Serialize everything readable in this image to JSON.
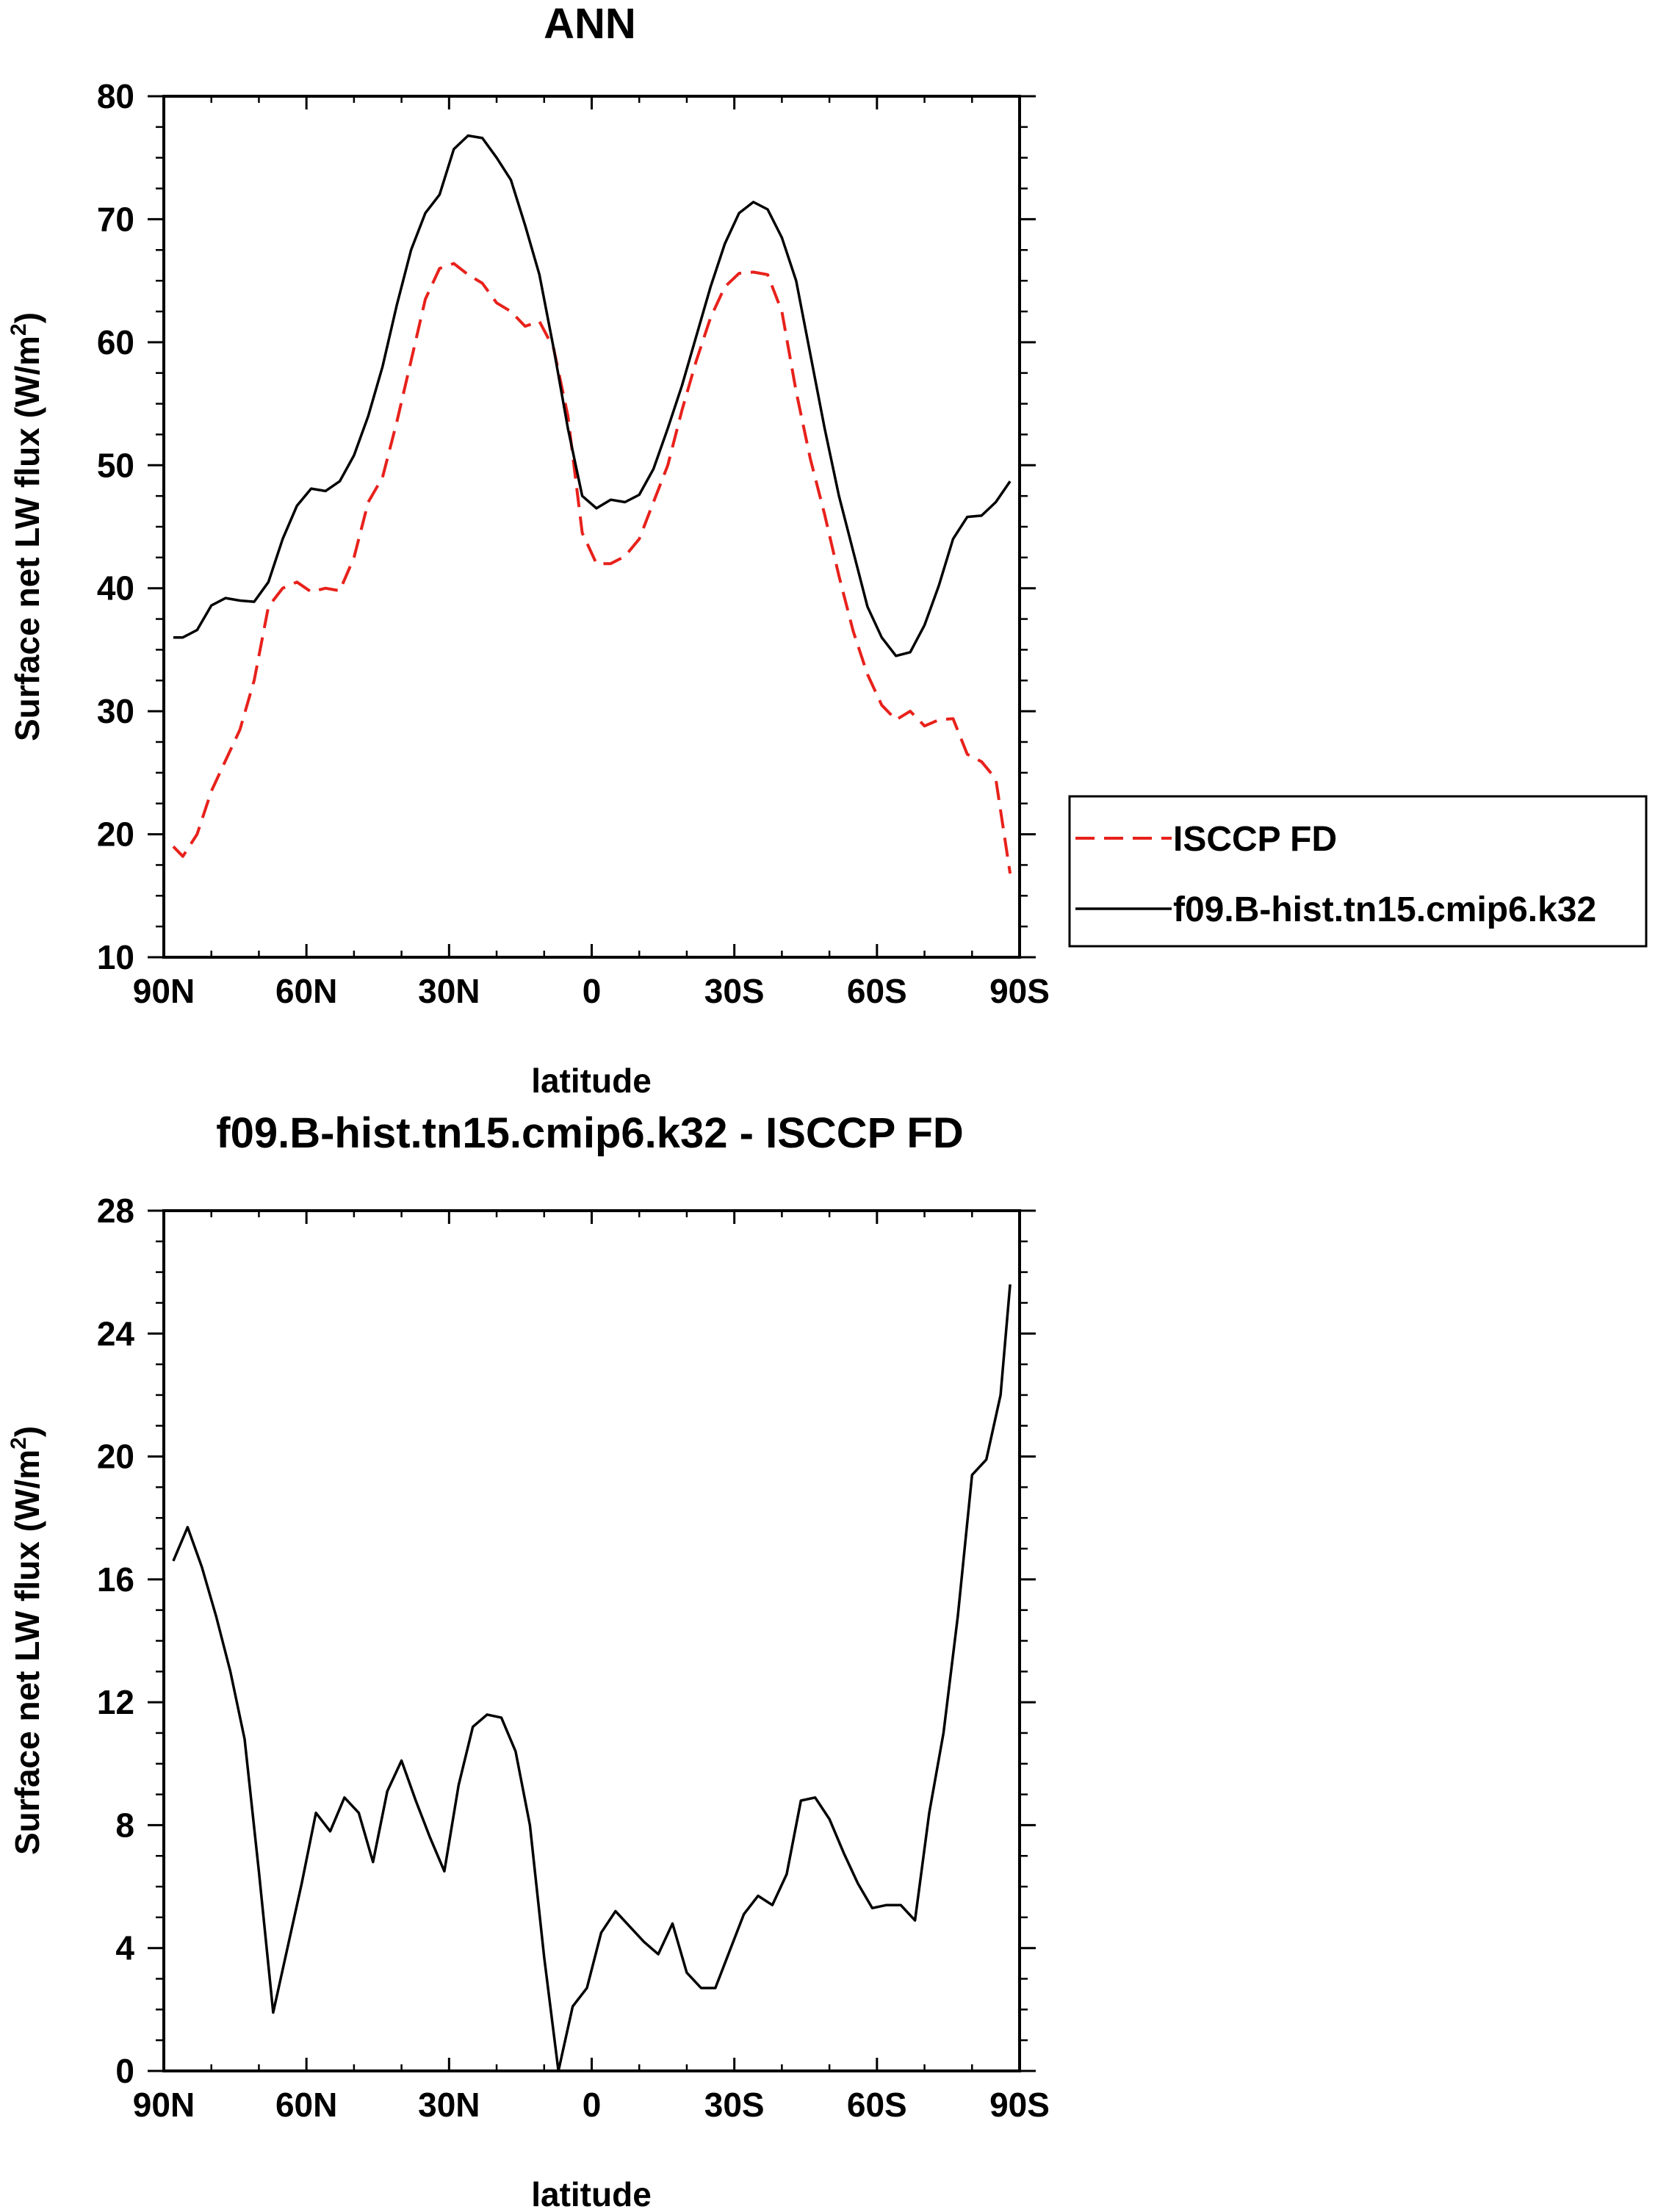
{
  "chart_data": [
    {
      "type": "line",
      "title": "ANN",
      "xlabel": "latitude",
      "ylabel": "Surface net LW flux (W/m",
      "ylabel_sup": "2",
      "ylabel_close": ")",
      "x_tick_values": [
        90,
        60,
        30,
        0,
        -30,
        -60,
        -90
      ],
      "x_tick_labels": [
        "90N",
        "60N",
        "30N",
        "0",
        "30S",
        "60S",
        "90S"
      ],
      "xlim": [
        90,
        -90
      ],
      "ylim": [
        10,
        80
      ],
      "y_ticks": [
        10,
        20,
        30,
        40,
        50,
        60,
        70,
        80
      ],
      "legend": {
        "placement": "right",
        "entries": [
          "ISCCP FD",
          "f09.B-hist.tn15.cmip6.k32"
        ]
      },
      "series": [
        {
          "name": "ISCCP FD",
          "color": "#e8211b",
          "style": "dashed",
          "x": [
            88,
            86,
            83,
            80,
            77,
            74,
            71,
            68,
            65,
            62,
            59,
            56,
            53,
            50,
            47,
            44,
            41,
            38,
            35,
            32,
            29,
            26,
            23,
            20,
            17,
            14,
            11,
            8,
            5,
            2,
            -1,
            -4,
            -7,
            -10,
            -13,
            -16,
            -19,
            -22,
            -25,
            -28,
            -31,
            -34,
            -37,
            -40,
            -43,
            -46,
            -49,
            -52,
            -55,
            -58,
            -61,
            -64,
            -67,
            -70,
            -73,
            -76,
            -79,
            -82,
            -85,
            -88
          ],
          "values": [
            19.0,
            18.2,
            20.0,
            23.5,
            26.0,
            28.5,
            32.5,
            38.5,
            40.0,
            40.5,
            39.7,
            40.0,
            39.8,
            42.5,
            47.0,
            49.0,
            53.5,
            58.5,
            63.5,
            66.0,
            66.4,
            65.5,
            64.8,
            63.2,
            62.5,
            61.3,
            61.7,
            59.5,
            54.0,
            44.5,
            42.0,
            42.0,
            42.6,
            44.0,
            47.0,
            50.0,
            54.5,
            58.5,
            62.0,
            64.5,
            65.6,
            65.7,
            65.5,
            62.5,
            56.0,
            50.5,
            46.0,
            41.0,
            36.5,
            33.0,
            30.5,
            29.3,
            30.0,
            28.8,
            29.3,
            29.4,
            26.5,
            25.9,
            24.5,
            16.8
          ]
        },
        {
          "name": "f09.B-hist.tn15.cmip6.k32",
          "color": "#000000",
          "style": "solid",
          "x": [
            88,
            86,
            83,
            80,
            77,
            74,
            71,
            68,
            65,
            62,
            59,
            56,
            53,
            50,
            47,
            44,
            41,
            38,
            35,
            32,
            29,
            26,
            23,
            20,
            17,
            14,
            11,
            8,
            5,
            2,
            -1,
            -4,
            -7,
            -10,
            -13,
            -16,
            -19,
            -22,
            -25,
            -28,
            -31,
            -34,
            -37,
            -40,
            -43,
            -46,
            -49,
            -52,
            -55,
            -58,
            -61,
            -64,
            -67,
            -70,
            -73,
            -76,
            -79,
            -82,
            -85,
            -88
          ],
          "values": [
            36.0,
            36.0,
            36.6,
            38.6,
            39.2,
            39.0,
            38.9,
            40.5,
            44.0,
            46.7,
            48.1,
            47.9,
            48.7,
            50.8,
            54.0,
            58.0,
            63.0,
            67.5,
            70.5,
            72.0,
            75.7,
            76.8,
            76.6,
            75.0,
            73.2,
            69.5,
            65.5,
            59.5,
            53.0,
            47.5,
            46.5,
            47.2,
            47.0,
            47.6,
            49.7,
            53.0,
            56.5,
            60.5,
            64.5,
            68.0,
            70.5,
            71.4,
            70.8,
            68.5,
            65.0,
            59.0,
            53.0,
            47.5,
            43.0,
            38.5,
            36.0,
            34.5,
            34.8,
            37.0,
            40.2,
            44.0,
            45.8,
            45.9,
            47.0,
            48.7
          ]
        }
      ]
    },
    {
      "type": "line",
      "title": "f09.B-hist.tn15.cmip6.k32 - ISCCP FD",
      "xlabel": "latitude",
      "ylabel": "Surface net LW flux (W/m",
      "ylabel_sup": "2",
      "ylabel_close": ")",
      "x_tick_values": [
        90,
        60,
        30,
        0,
        -30,
        -60,
        -90
      ],
      "x_tick_labels": [
        "90N",
        "60N",
        "30N",
        "0",
        "30S",
        "60S",
        "90S"
      ],
      "xlim": [
        90,
        -90
      ],
      "ylim": [
        0,
        28
      ],
      "y_ticks": [
        0,
        4,
        8,
        12,
        16,
        20,
        24,
        28
      ],
      "series": [
        {
          "name": "f09.B-hist.tn15.cmip6.k32 - ISCCP FD",
          "color": "#000000",
          "style": "solid",
          "x": [
            88,
            85,
            82,
            79,
            76,
            73,
            70,
            67,
            64,
            61,
            58,
            55,
            52,
            49,
            46,
            43,
            40,
            37,
            34,
            31,
            28,
            25,
            22,
            19,
            16,
            13,
            10,
            7,
            4,
            1,
            -2,
            -5,
            -8,
            -11,
            -14,
            -17,
            -20,
            -23,
            -26,
            -29,
            -32,
            -35,
            -38,
            -41,
            -44,
            -47,
            -50,
            -53,
            -56,
            -59,
            -62,
            -65,
            -68,
            -71,
            -74,
            -77,
            -80,
            -83,
            -86,
            -88
          ],
          "values": [
            16.6,
            17.7,
            16.4,
            14.8,
            13.0,
            10.8,
            6.5,
            1.9,
            4.0,
            6.1,
            8.4,
            7.8,
            8.9,
            8.4,
            6.8,
            9.1,
            10.1,
            8.8,
            7.6,
            6.5,
            9.3,
            11.2,
            11.6,
            11.5,
            10.4,
            8.0,
            3.7,
            0.0,
            2.1,
            2.7,
            4.5,
            5.2,
            4.7,
            4.2,
            3.8,
            4.8,
            3.2,
            2.7,
            2.7,
            3.9,
            5.1,
            5.7,
            5.4,
            6.4,
            8.8,
            8.9,
            8.2,
            7.1,
            6.1,
            5.3,
            5.4,
            5.4,
            4.9,
            8.4,
            11.0,
            14.8,
            19.4,
            19.9,
            22.0,
            25.6
          ]
        }
      ]
    }
  ]
}
